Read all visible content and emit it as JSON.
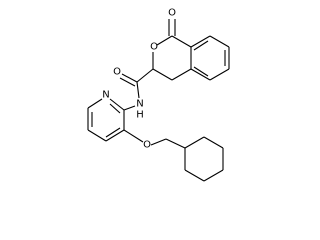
{
  "atoms": [
    {
      "label": "O"
    },
    {
      "label": "O"
    },
    {
      "label": "O"
    },
    {
      "label": "N"
    },
    {
      "label": "N"
    },
    {
      "label": "H"
    },
    {
      "label": "O"
    }
  ]
}
